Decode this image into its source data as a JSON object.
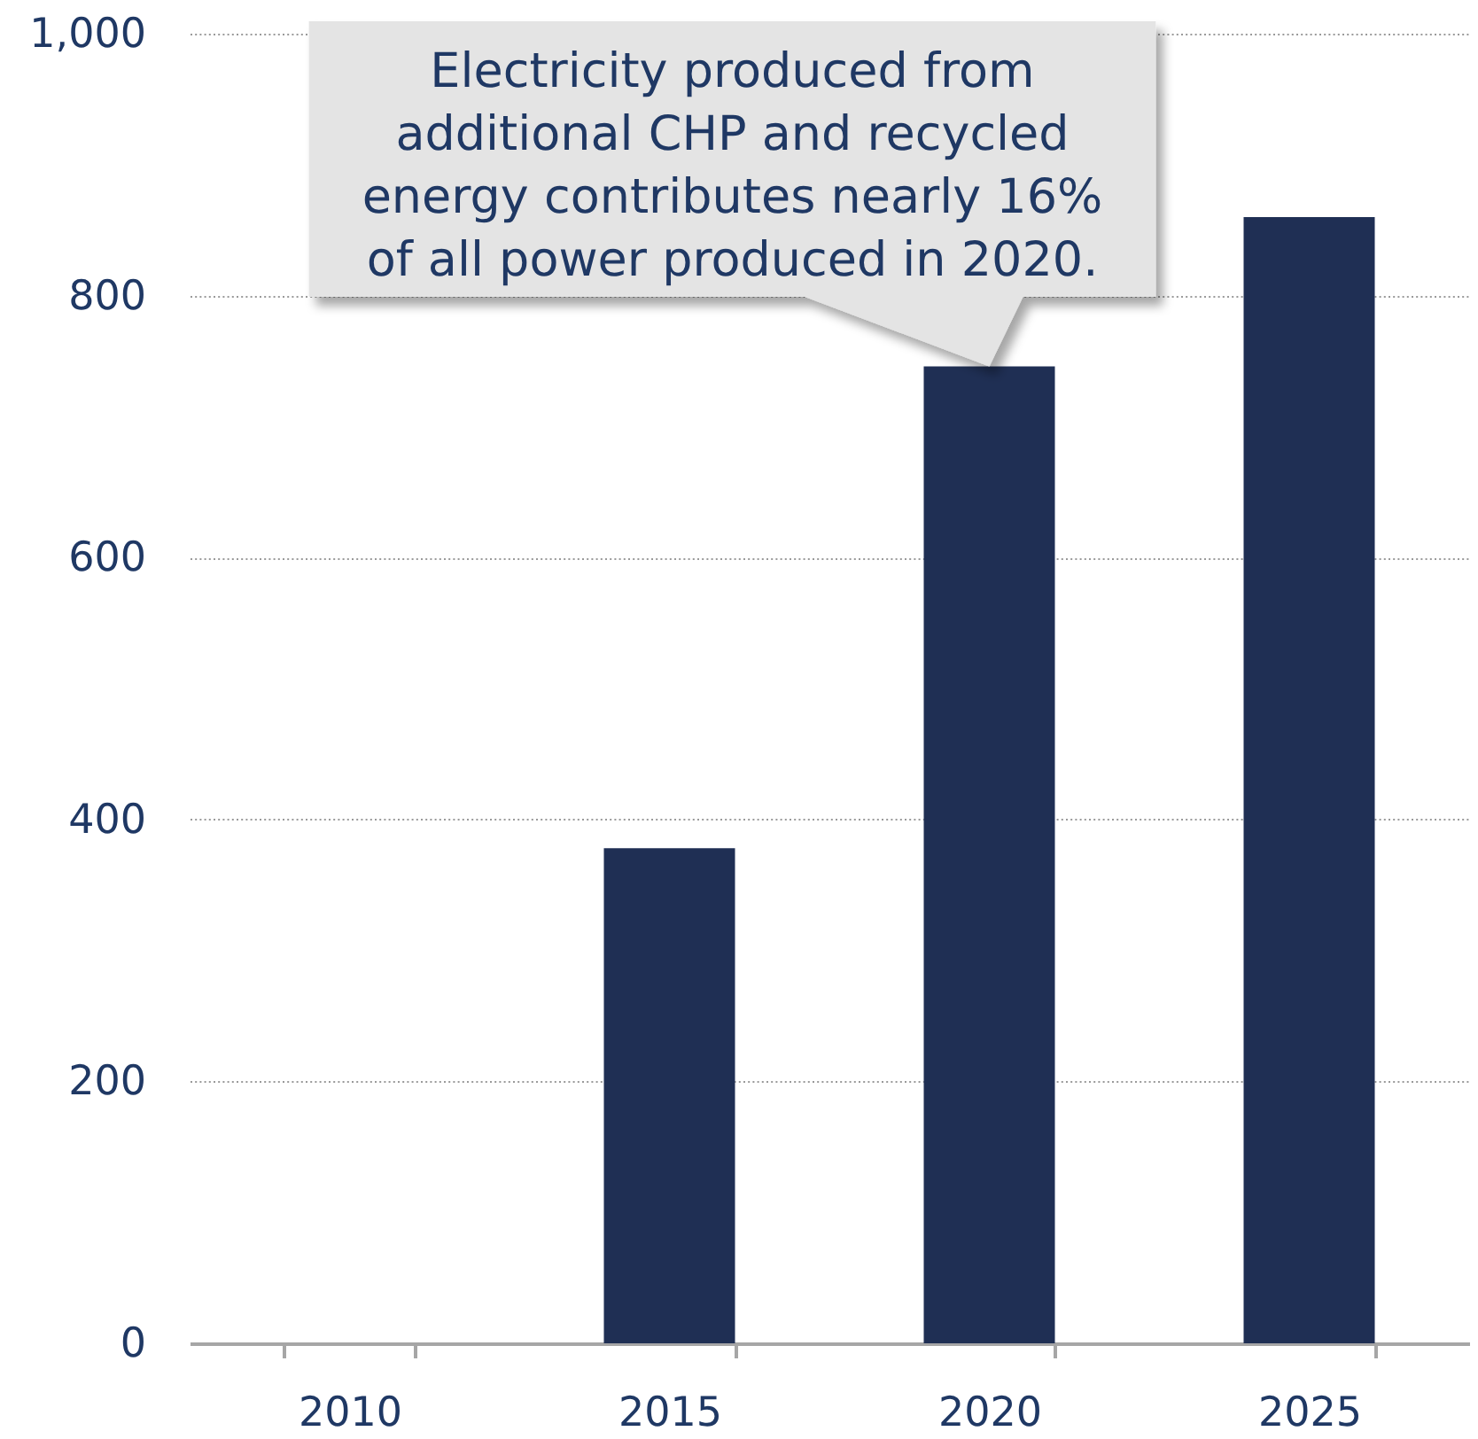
{
  "chart_data": {
    "type": "bar",
    "categories": [
      "2010",
      "2015",
      "2020",
      "2025"
    ],
    "values": [
      null,
      378,
      746,
      860
    ],
    "color": "#1f2f54",
    "ylim": [
      0,
      1000
    ],
    "yticks": [
      0,
      200,
      400,
      600,
      800,
      {
        "value": 1000,
        "label": "1,000"
      }
    ],
    "grid": "y",
    "annotations": [
      {
        "text": "Electricity produced from additional CHP and recycled energy contributes nearly 16% of all power produced in 2020.",
        "x": "2020",
        "y": 746
      }
    ]
  }
}
